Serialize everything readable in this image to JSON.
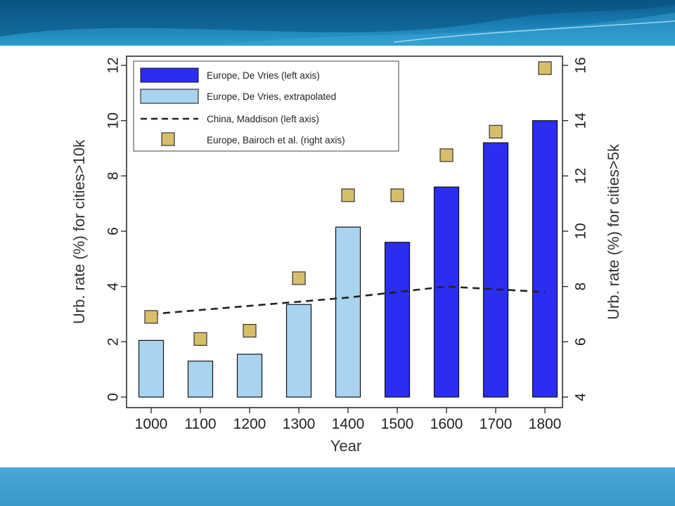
{
  "colors": {
    "banner": "#1a7fb4",
    "bottom_band": "#3b97ca",
    "europe_de_vries": "#2b2ef0",
    "europe_extrapolated": "#a9d4ef",
    "china_line": "#222222",
    "bairoch_marker": "#d9be6a"
  },
  "chart_data": {
    "type": "bar",
    "xlabel": "Year",
    "ylabel_left": "Urb. rate (%) for cities>10k",
    "ylabel_right": "Urb. rate (%) for cities>5k",
    "ylim_left": [
      0,
      12
    ],
    "ylim_right": [
      4,
      16
    ],
    "yticks_left": [
      0,
      2,
      4,
      6,
      8,
      10,
      12
    ],
    "yticks_right": [
      4,
      6,
      8,
      10,
      12,
      14,
      16
    ],
    "categories": [
      "1000",
      "1100",
      "1200",
      "1300",
      "1400",
      "1500",
      "1600",
      "1700",
      "1800"
    ],
    "grid": false,
    "legend_position": "top-left",
    "legend": [
      {
        "label": "Europe, De Vries (left axis)",
        "kind": "bar",
        "series": "europe_de_vries"
      },
      {
        "label": "Europe, De Vries, extrapolated",
        "kind": "bar",
        "series": "europe_extrapolated"
      },
      {
        "label": "China, Maddison (left axis)",
        "kind": "dashed-line",
        "series": "china_maddison"
      },
      {
        "label": "Europe, Bairoch et al. (right axis)",
        "kind": "square",
        "series": "europe_bairoch"
      }
    ],
    "series": [
      {
        "name": "Europe, De Vries (left axis)",
        "key": "europe_de_vries",
        "axis": "left",
        "values": [
          null,
          null,
          null,
          null,
          null,
          5.6,
          7.6,
          9.2,
          10.0
        ]
      },
      {
        "name": "Europe, De Vries, extrapolated",
        "key": "europe_extrapolated",
        "axis": "left",
        "values": [
          2.05,
          1.3,
          1.55,
          3.35,
          6.15,
          null,
          null,
          null,
          null
        ]
      },
      {
        "name": "China, Maddison (left axis)",
        "key": "china_maddison",
        "axis": "left",
        "values": [
          3.0,
          3.15,
          3.3,
          3.45,
          3.6,
          3.8,
          4.0,
          3.9,
          3.8
        ]
      },
      {
        "name": "Europe, Bairoch et al. (right axis)",
        "key": "europe_bairoch",
        "axis": "right",
        "values": [
          6.9,
          6.1,
          6.4,
          8.3,
          11.3,
          11.3,
          12.75,
          13.6,
          15.9
        ]
      }
    ]
  }
}
